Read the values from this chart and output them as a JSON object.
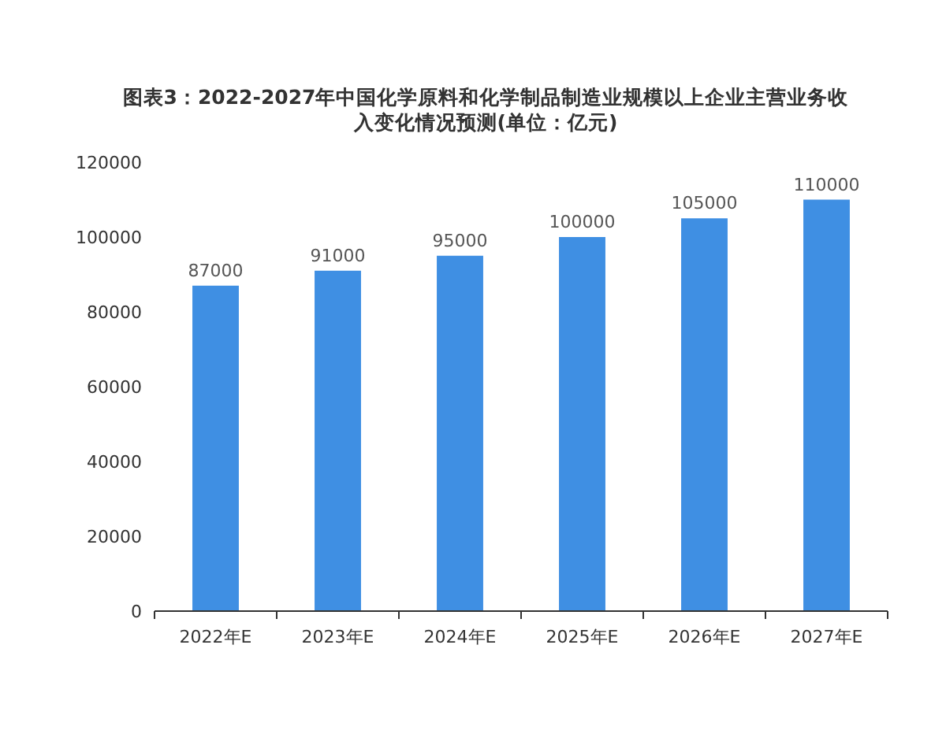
{
  "chart_data": {
    "type": "bar",
    "title": "图表3：2022-2027年中国化学原料和化学制品制造业规模以上企业主营业务收入变化情况预测(单位：亿元)",
    "categories": [
      "2022年E",
      "2023年E",
      "2024年E",
      "2025年E",
      "2026年E",
      "2027年E"
    ],
    "values": [
      87000,
      91000,
      95000,
      100000,
      105000,
      110000
    ],
    "color": "#3f8fe3",
    "ylim": [
      0,
      120000
    ],
    "yticks": [
      0,
      20000,
      40000,
      60000,
      80000,
      100000,
      120000
    ],
    "grid": false,
    "data_labels": true
  }
}
